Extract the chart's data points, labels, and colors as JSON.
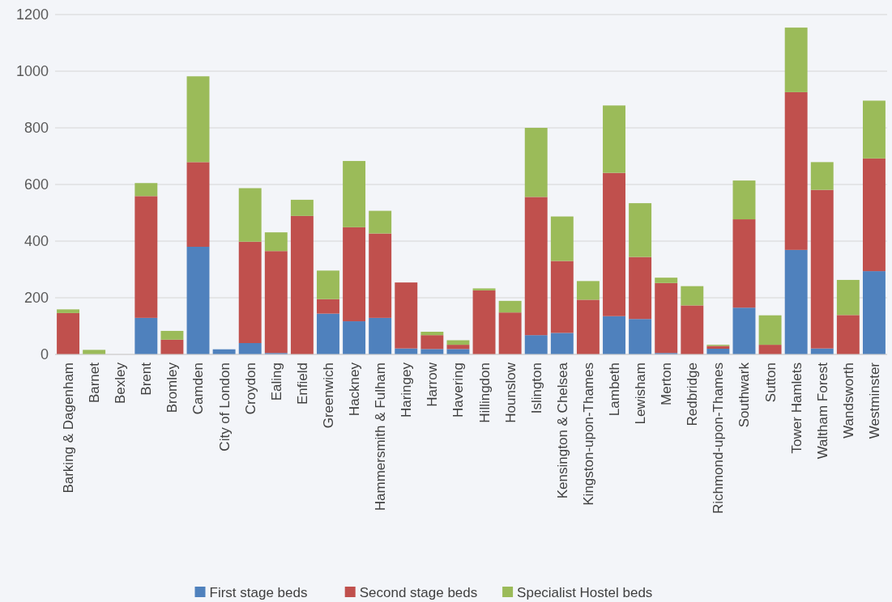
{
  "chart_data": {
    "type": "bar",
    "stacked": true,
    "categories": [
      "Barking & Dagenham",
      "Barnet",
      "Bexley",
      "Brent",
      "Bromley",
      "Camden",
      "City of London",
      "Croydon",
      "Ealing",
      "Enfield",
      "Greenwich",
      "Hackney",
      "Hammersmith & Fulham",
      "Haringey",
      "Harrow",
      "Havering",
      "Hillingdon",
      "Hounslow",
      "Islington",
      "Kensington & Chelsea",
      "Kingston-upon-Thames",
      "Lambeth",
      "Lewisham",
      "Merton",
      "Redbridge",
      "Richmond-upon-Thames",
      "Southwark",
      "Sutton",
      "Tower Hamlets",
      "Waltham Forest",
      "Wandsworth",
      "Westminster"
    ],
    "series": [
      {
        "name": "First stage beds",
        "color": "#4f81bd",
        "values": [
          0,
          0,
          0,
          129,
          0,
          380,
          18,
          40,
          5,
          0,
          144,
          117,
          129,
          21,
          19,
          19,
          0,
          0,
          68,
          76,
          0,
          135,
          125,
          5,
          0,
          20,
          165,
          0,
          369,
          21,
          0,
          294
        ]
      },
      {
        "name": "Second stage beds",
        "color": "#c0504d",
        "values": [
          146,
          0,
          0,
          430,
          52,
          299,
          0,
          358,
          360,
          489,
          51,
          332,
          298,
          233,
          49,
          15,
          226,
          148,
          488,
          254,
          193,
          506,
          219,
          247,
          173,
          10,
          312,
          34,
          557,
          560,
          139,
          398
        ]
      },
      {
        "name": "Specialist Hostel beds",
        "color": "#9bbb59",
        "values": [
          13,
          16,
          0,
          46,
          31,
          303,
          0,
          189,
          66,
          57,
          101,
          234,
          80,
          0,
          12,
          16,
          7,
          41,
          244,
          157,
          66,
          238,
          190,
          19,
          68,
          4,
          137,
          104,
          228,
          98,
          124,
          204
        ]
      }
    ],
    "ylim": [
      0,
      1200
    ],
    "yticks": [
      0,
      200,
      400,
      600,
      800,
      1000,
      1200
    ],
    "grid": "y",
    "legend": "bottom"
  }
}
